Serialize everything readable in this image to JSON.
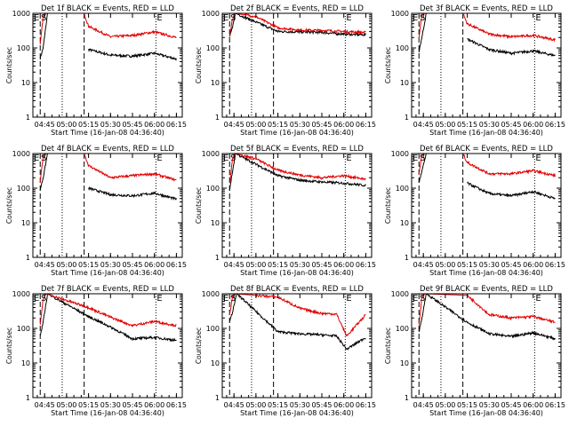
{
  "chart_data": [
    {
      "type": "line",
      "title": "Det 1f BLACK = Events, RED = LLD",
      "xlabel": "Start Time (16-Jan-08 04:36:40)",
      "ylabel": "Counts/sec",
      "x_ticks": [
        "04:45",
        "05:00",
        "05:15",
        "05:30",
        "05:45",
        "06:00",
        "06:15"
      ],
      "y_ticks": [
        "1",
        "10",
        "100",
        "1000"
      ],
      "ylim": [
        1,
        1000
      ],
      "log_y": true,
      "markers": [
        {
          "label": "E",
          "time": "04:42"
        },
        {
          "label": "S",
          "time": "04:45"
        }
      ],
      "end_marker": {
        "label": "E",
        "time": "06:01"
      },
      "series": [
        {
          "name": "",
          "color": "#000000",
          "x": [
            "04:42",
            "04:44",
            "04:47",
            "05:12",
            "05:15",
            "05:30",
            "05:45",
            "06:00",
            "06:15"
          ],
          "values": [
            50,
            100,
            1000,
            null,
            90,
            62,
            58,
            70,
            48
          ]
        },
        {
          "name": "",
          "color": "#e00000",
          "x": [
            "04:42",
            "04:44",
            "04:46",
            "05:12",
            "05:15",
            "05:30",
            "05:45",
            "06:00",
            "06:15"
          ],
          "values": [
            120,
            800,
            1000,
            1000,
            420,
            210,
            230,
            290,
            200
          ]
        }
      ]
    },
    {
      "type": "line",
      "title": "Det 2f BLACK = Events, RED = LLD",
      "xlabel": "Start Time (16-Jan-08 04:36:40)",
      "ylabel": "Counts/sec",
      "x_ticks": [
        "04:45",
        "05:00",
        "05:15",
        "05:30",
        "05:45",
        "06:00",
        "06:15"
      ],
      "y_ticks": [
        "1",
        "10",
        "100",
        "1000"
      ],
      "ylim": [
        1,
        1000
      ],
      "log_y": true,
      "markers": [
        {
          "label": "E",
          "time": "04:42"
        },
        {
          "label": "S",
          "time": "04:45"
        }
      ],
      "end_marker": {
        "label": "E",
        "time": "06:01"
      },
      "series": [
        {
          "name": "",
          "color": "#000000",
          "x": [
            "04:42",
            "04:44",
            "04:46",
            "05:15",
            "05:30",
            "05:45",
            "06:00",
            "06:15"
          ],
          "values": [
            200,
            400,
            1000,
            300,
            290,
            280,
            250,
            240
          ]
        },
        {
          "name": "",
          "color": "#e00000",
          "x": [
            "04:42",
            "04:44",
            "04:46",
            "05:00",
            "05:15",
            "05:30",
            "05:45",
            "06:00",
            "06:15"
          ],
          "values": [
            220,
            700,
            1000,
            800,
            380,
            330,
            320,
            300,
            280
          ]
        }
      ]
    },
    {
      "type": "line",
      "title": "Det 3f BLACK = Events, RED = LLD",
      "xlabel": "Start Time (16-Jan-08 04:36:40)",
      "ylabel": "Counts/sec",
      "x_ticks": [
        "04:45",
        "05:00",
        "05:15",
        "05:30",
        "05:45",
        "06:00",
        "06:15"
      ],
      "y_ticks": [
        "1",
        "10",
        "100",
        "1000"
      ],
      "ylim": [
        1,
        1000
      ],
      "log_y": true,
      "markers": [
        {
          "label": "E",
          "time": "04:42"
        },
        {
          "label": "S",
          "time": "04:45"
        }
      ],
      "end_marker": {
        "label": "E",
        "time": "06:01"
      },
      "series": [
        {
          "name": "",
          "color": "#000000",
          "x": [
            "04:42",
            "04:44",
            "04:47",
            "05:12",
            "05:15",
            "05:30",
            "05:45",
            "06:00",
            "06:15"
          ],
          "values": [
            80,
            200,
            1000,
            null,
            180,
            90,
            70,
            82,
            60
          ]
        },
        {
          "name": "",
          "color": "#e00000",
          "x": [
            "04:42",
            "04:44",
            "04:46",
            "05:12",
            "05:15",
            "05:30",
            "05:45",
            "06:00",
            "06:15"
          ],
          "values": [
            200,
            900,
            1000,
            1000,
            500,
            250,
            210,
            230,
            170
          ]
        }
      ]
    },
    {
      "type": "line",
      "title": "Det 4f BLACK = Events, RED = LLD",
      "xlabel": "Start Time (16-Jan-08 04:36:40)",
      "ylabel": "Counts/sec",
      "x_ticks": [
        "04:45",
        "05:00",
        "05:15",
        "05:30",
        "05:45",
        "06:00",
        "06:15"
      ],
      "y_ticks": [
        "1",
        "10",
        "100",
        "1000"
      ],
      "ylim": [
        1,
        1000
      ],
      "log_y": true,
      "markers": [
        {
          "label": "E",
          "time": "04:42"
        },
        {
          "label": "S",
          "time": "04:45"
        }
      ],
      "end_marker": {
        "label": "E",
        "time": "06:01"
      },
      "series": [
        {
          "name": "",
          "color": "#000000",
          "x": [
            "04:42",
            "04:44",
            "04:47",
            "05:12",
            "05:15",
            "05:30",
            "05:45",
            "06:00",
            "06:15"
          ],
          "values": [
            90,
            200,
            1000,
            null,
            100,
            65,
            60,
            72,
            48
          ]
        },
        {
          "name": "",
          "color": "#e00000",
          "x": [
            "04:42",
            "04:44",
            "04:46",
            "05:12",
            "05:15",
            "05:30",
            "05:45",
            "06:00",
            "06:15"
          ],
          "values": [
            150,
            800,
            1000,
            1000,
            450,
            200,
            230,
            260,
            170
          ]
        }
      ]
    },
    {
      "type": "line",
      "title": "Det 5f BLACK = Events, RED = LLD",
      "xlabel": "Start Time (16-Jan-08 04:36:40)",
      "ylabel": "Counts/sec",
      "x_ticks": [
        "04:45",
        "05:00",
        "05:15",
        "05:30",
        "05:45",
        "06:00",
        "06:15"
      ],
      "y_ticks": [
        "1",
        "10",
        "100",
        "1000"
      ],
      "ylim": [
        1,
        1000
      ],
      "log_y": true,
      "markers": [
        {
          "label": "E",
          "time": "04:42"
        },
        {
          "label": "S",
          "time": "04:45"
        }
      ],
      "end_marker": {
        "label": "E",
        "time": "06:01"
      },
      "series": [
        {
          "name": "",
          "color": "#000000",
          "x": [
            "04:42",
            "04:44",
            "04:46",
            "05:15",
            "05:30",
            "05:45",
            "06:00",
            "06:15"
          ],
          "values": [
            90,
            300,
            1000,
            230,
            170,
            150,
            140,
            120
          ]
        },
        {
          "name": "",
          "color": "#e00000",
          "x": [
            "04:42",
            "04:44",
            "04:46",
            "05:00",
            "05:15",
            "05:30",
            "05:45",
            "06:00",
            "06:15"
          ],
          "values": [
            130,
            700,
            1000,
            700,
            330,
            240,
            200,
            230,
            180
          ]
        }
      ]
    },
    {
      "type": "line",
      "title": "Det 6f BLACK = Events, RED = LLD",
      "xlabel": "Start Time (16-Jan-08 04:36:40)",
      "ylabel": "Counts/sec",
      "x_ticks": [
        "04:45",
        "05:00",
        "05:15",
        "05:30",
        "05:45",
        "06:00",
        "06:15"
      ],
      "y_ticks": [
        "1",
        "10",
        "100",
        "1000"
      ],
      "ylim": [
        1,
        1000
      ],
      "log_y": true,
      "markers": [
        {
          "label": "E",
          "time": "04:42"
        },
        {
          "label": "S",
          "time": "04:45"
        }
      ],
      "end_marker": {
        "label": "E",
        "time": "06:01"
      },
      "series": [
        {
          "name": "",
          "color": "#000000",
          "x": [
            "04:42",
            "04:44",
            "04:47",
            "05:12",
            "05:15",
            "05:30",
            "05:45",
            "06:00",
            "06:15"
          ],
          "values": [
            150,
            300,
            1000,
            null,
            140,
            70,
            60,
            80,
            50
          ]
        },
        {
          "name": "",
          "color": "#e00000",
          "x": [
            "04:42",
            "04:44",
            "04:46",
            "05:12",
            "05:15",
            "05:30",
            "05:45",
            "06:00",
            "06:15"
          ],
          "values": [
            250,
            900,
            1000,
            1000,
            550,
            260,
            260,
            320,
            230
          ]
        }
      ]
    },
    {
      "type": "line",
      "title": "Det 7f BLACK = Events, RED = LLD",
      "xlabel": "Start Time (16-Jan-08 04:36:40)",
      "ylabel": "Counts/sec",
      "x_ticks": [
        "04:45",
        "05:00",
        "05:15",
        "05:30",
        "05:45",
        "06:00",
        "06:15"
      ],
      "y_ticks": [
        "1",
        "10",
        "100",
        "1000"
      ],
      "ylim": [
        1,
        1000
      ],
      "log_y": true,
      "markers": [
        {
          "label": "E",
          "time": "04:42"
        },
        {
          "label": "S",
          "time": "04:45"
        }
      ],
      "end_marker": {
        "label": "E",
        "time": "06:01"
      },
      "series": [
        {
          "name": "",
          "color": "#000000",
          "x": [
            "04:42",
            "04:44",
            "04:47",
            "05:15",
            "05:30",
            "05:45",
            "06:00",
            "06:15"
          ],
          "values": [
            60,
            150,
            1000,
            220,
            110,
            50,
            55,
            45
          ]
        },
        {
          "name": "",
          "color": "#e00000",
          "x": [
            "04:42",
            "04:44",
            "04:46",
            "05:15",
            "05:30",
            "05:45",
            "06:00",
            "06:15"
          ],
          "values": [
            120,
            700,
            1000,
            400,
            210,
            120,
            160,
            120
          ]
        }
      ]
    },
    {
      "type": "line",
      "title": "Det 8f BLACK = Events, RED = LLD",
      "xlabel": "Start Time (16-Jan-08 04:36:40)",
      "ylabel": "Counts/sec",
      "x_ticks": [
        "04:45",
        "05:00",
        "05:15",
        "05:30",
        "05:45",
        "06:00",
        "06:15"
      ],
      "y_ticks": [
        "1",
        "10",
        "100",
        "1000"
      ],
      "ylim": [
        1,
        1000
      ],
      "log_y": true,
      "markers": [
        {
          "label": "E",
          "time": "04:42"
        },
        {
          "label": "S",
          "time": "04:45"
        }
      ],
      "end_marker": {
        "label": "E",
        "time": "06:01"
      },
      "series": [
        {
          "name": "",
          "color": "#000000",
          "x": [
            "04:42",
            "04:44",
            "04:47",
            "05:15",
            "05:30",
            "05:45",
            "05:55",
            "06:02",
            "06:15"
          ],
          "values": [
            150,
            300,
            1000,
            80,
            70,
            65,
            60,
            25,
            55
          ]
        },
        {
          "name": "",
          "color": "#e00000",
          "x": [
            "04:42",
            "04:44",
            "04:46",
            "05:15",
            "05:30",
            "05:45",
            "05:55",
            "06:02",
            "06:15"
          ],
          "values": [
            250,
            800,
            1000,
            800,
            380,
            270,
            260,
            60,
            250
          ]
        }
      ]
    },
    {
      "type": "line",
      "title": "Det 9f BLACK = Events, RED = LLD",
      "xlabel": "Start Time (16-Jan-08 04:36:40)",
      "ylabel": "Counts/sec",
      "x_ticks": [
        "04:45",
        "05:00",
        "05:15",
        "05:30",
        "05:45",
        "06:00",
        "06:15"
      ],
      "y_ticks": [
        "1",
        "10",
        "100",
        "1000"
      ],
      "ylim": [
        1,
        1000
      ],
      "log_y": true,
      "markers": [
        {
          "label": "E",
          "time": "04:42"
        },
        {
          "label": "S",
          "time": "04:45"
        }
      ],
      "end_marker": {
        "label": "E",
        "time": "06:01"
      },
      "series": [
        {
          "name": "",
          "color": "#000000",
          "x": [
            "04:42",
            "04:44",
            "04:47",
            "05:15",
            "05:30",
            "05:45",
            "06:00",
            "06:15"
          ],
          "values": [
            80,
            200,
            1000,
            150,
            70,
            58,
            75,
            50
          ]
        },
        {
          "name": "",
          "color": "#e00000",
          "x": [
            "04:42",
            "04:44",
            "04:46",
            "05:15",
            "05:30",
            "05:45",
            "06:00",
            "06:15"
          ],
          "values": [
            130,
            800,
            1000,
            900,
            250,
            200,
            220,
            150
          ]
        }
      ]
    }
  ]
}
